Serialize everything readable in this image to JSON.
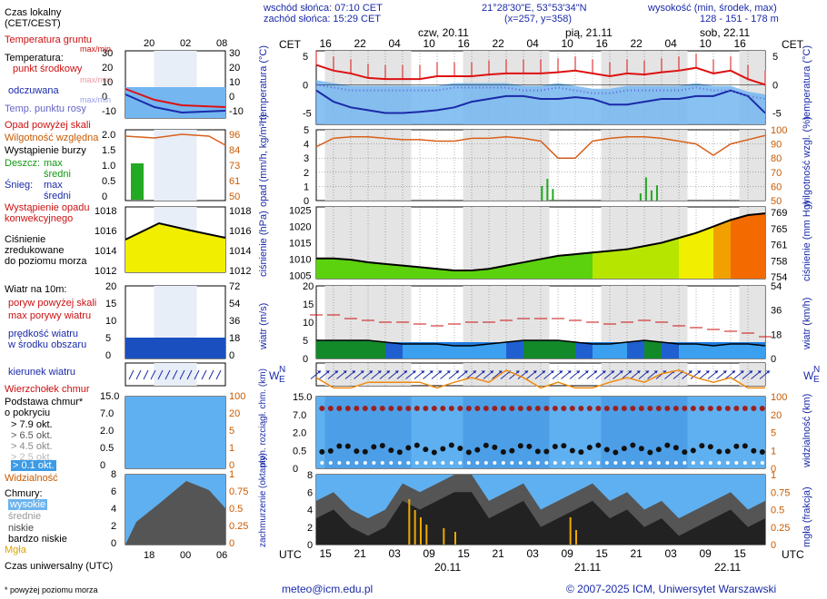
{
  "header": {
    "sunrise": "wschód słońca: 07:10 CET",
    "sunset": "zachód słońca: 15:29 CET",
    "coords": "21°28'30\"E, 53°53'34\"N",
    "grid": "(x=257,  y=358)",
    "altitude_label": "wysokość (min, środek, max)",
    "altitude_values": "128 - 151 - 178 m"
  },
  "time": {
    "cet_label": "CET",
    "utc_label": "UTC",
    "cet_hours": [
      "16",
      "22",
      "04",
      "10",
      "16",
      "22",
      "04",
      "10",
      "16",
      "22",
      "04",
      "10",
      "16"
    ],
    "utc_hours": [
      "15",
      "21",
      "03",
      "09",
      "15",
      "21",
      "03",
      "09",
      "15",
      "21",
      "03",
      "09",
      "15"
    ],
    "day_labels": [
      "czw, 20.11",
      "pią, 21.11",
      "sob, 22.11"
    ],
    "utc_dates": [
      "20.11",
      "21.11",
      "22.11"
    ]
  },
  "legend": {
    "local_time": "Czas lokalny",
    "local_time_sub": "(CET/CEST)",
    "legend_top_hours": [
      "20",
      "02",
      "08"
    ],
    "legend_bottom_hours": [
      "18",
      "00",
      "06"
    ],
    "utc_time": "Czas uniwersalny (UTC)",
    "footnote": "* powyżej poziomu morza",
    "temp": {
      "ground": "Temperatura gruntu",
      "ground_sub": "max/min",
      "title": "Temperatura:",
      "mid": "punkt środkowy",
      "maxmin": "max/min",
      "feels": "odczuwana",
      "feels_maxmin": "max/min",
      "dew": "Temp. punktu rosy",
      "ticks": [
        "30",
        "20",
        "10",
        "0",
        "-10"
      ],
      "ticks_right": [
        "30",
        "20",
        "10",
        "0",
        "-10"
      ]
    },
    "precip": {
      "above": "Opad powyżej skali",
      "rh": "Wilgotność względna",
      "storm": "Wystąpienie burzy",
      "rain": "Deszcz:",
      "rain_max": "max",
      "rain_mean": "średni",
      "snow": "Śnieg:",
      "snow_max": "max",
      "snow_mean": "średni",
      "convective": "Wystąpienie opadu",
      "convective2": "konwekcyjnego",
      "ticks": [
        "2.0",
        "1.5",
        "1.0",
        "0.5",
        "0"
      ],
      "ticks_right": [
        "96",
        "84",
        "73",
        "61",
        "50"
      ]
    },
    "pressure": {
      "title": "Ciśnienie",
      "sub1": "zredukowane",
      "sub2": "do poziomu morza",
      "ticks": [
        "1018",
        "1016",
        "1014",
        "1012"
      ],
      "ticks_right": [
        "1018",
        "1016",
        "1014",
        "1012"
      ]
    },
    "wind": {
      "title": "Wiatr na 10m:",
      "gust_above": "poryw powyżej skali",
      "gust_max": "max porywy wiatru",
      "speed": "prędkość wiatru",
      "speed2": "w środku obszaru",
      "ticks": [
        "20",
        "15",
        "10",
        "5",
        "0"
      ],
      "ticks_right": [
        "72",
        "54",
        "36",
        "18",
        "0"
      ]
    },
    "direction": "kierunek wiatru",
    "clouds_base": {
      "tops": "Wierzchołek chmur",
      "base": "Podstawa chmur*",
      "cover": "o pokryciu",
      "o79": "> 7.9 okt.",
      "o65": "> 6.5 okt.",
      "o45": "> 4.5 okt.",
      "o25": "> 2.5 okt.",
      "o01": "> 0.1 okt.",
      "visibility": "Widzialność",
      "ticks": [
        "15.0",
        "7.0",
        "2.0",
        "0.5",
        "0"
      ],
      "ticks_right": [
        "100",
        "20",
        "5",
        "1",
        "0"
      ]
    },
    "clouds": {
      "title": "Chmury:",
      "high": "wysokie",
      "mid": "średnie",
      "low": "niskie",
      "very_low": "bardzo niskie",
      "fog": "Mgła",
      "ticks": [
        "8",
        "6",
        "4",
        "2",
        "0"
      ],
      "ticks_right": [
        "1",
        "0.75",
        "0.5",
        "0.25",
        "0"
      ]
    }
  },
  "panels": {
    "temperature": {
      "ylabel": "temperatura (°C)",
      "ylabel_r": "temperatura (°C)",
      "ticks": [
        "5",
        "0",
        "-5"
      ]
    },
    "precip": {
      "ylabel": "opad (mm/h, kg/m²h)",
      "ylabel_r": "wilgotność wzgl. (%)",
      "ticks": [
        "5",
        "4",
        "3",
        "2",
        "1",
        "0"
      ],
      "ticks_right": [
        "100",
        "90",
        "80",
        "70",
        "60",
        "50"
      ]
    },
    "pressure": {
      "ylabel": "ciśnienie (hPa)",
      "ylabel_r": "ciśnienie (mm Hg)",
      "ticks": [
        "1025",
        "1020",
        "1015",
        "1010",
        "1005"
      ],
      "ticks_right": [
        "769",
        "765",
        "761",
        "758",
        "754"
      ]
    },
    "wind": {
      "ylabel": "wiatr (m/s)",
      "ylabel_r": "wiatr (km/h)",
      "ticks": [
        "20",
        "15",
        "10",
        "5",
        "0"
      ],
      "ticks_right": [
        "54",
        "36",
        "18",
        "0"
      ]
    },
    "clouds_base": {
      "ylabel": "pion. rozciągł. chm. (km)",
      "ylabel_r": "widzialność (km)",
      "ticks": [
        "15.0",
        "7.0",
        "2.0",
        "0.5",
        "0"
      ],
      "ticks_right": [
        "100",
        "20",
        "5",
        "1",
        "0"
      ]
    },
    "clouds": {
      "ylabel": "zachmurzenie (oktanty)",
      "ylabel_r": "mgła (frakcja)",
      "ticks": [
        "8",
        "6",
        "4",
        "2",
        "0"
      ],
      "ticks_right": [
        "1",
        "0.75",
        "0.5",
        "0.25",
        "0"
      ]
    },
    "compass": {
      "n": "N",
      "w": "W",
      "e": "E",
      "s": "S"
    }
  },
  "footer": {
    "email": "meteo@icm.edu.pl",
    "copyright": "© 2007-2025 ICM, Uniwersytet Warszawski"
  },
  "colors": {
    "red": "#dd1111",
    "blue": "#1a2aa8",
    "orange": "#d8601a",
    "sky": "#74b6f0",
    "rain": "#22aa22",
    "yellow": "#f2ee00"
  },
  "chart_data": [
    {
      "type": "line",
      "title": "temperatura",
      "ylabel": "temperatura (°C)",
      "ylim": [
        -7,
        6
      ],
      "x_hours_from_start": [
        0,
        3,
        6,
        9,
        12,
        15,
        18,
        21,
        24,
        27,
        30,
        33,
        36,
        39,
        42,
        45,
        48,
        51,
        54,
        57,
        60,
        63,
        66,
        69,
        72,
        75,
        78
      ],
      "series": [
        {
          "name": "punkt środkowy",
          "values": [
            3.5,
            2.5,
            2,
            1.2,
            1,
            1,
            1,
            1.5,
            1.5,
            1.5,
            1.8,
            2,
            2,
            2,
            2.2,
            2.5,
            2,
            1.5,
            2,
            1.8,
            2.2,
            2.5,
            3,
            2,
            2.5,
            1,
            0
          ]
        },
        {
          "name": "odczuwana",
          "values": [
            -1,
            -3,
            -4,
            -4.5,
            -5,
            -5,
            -4.8,
            -4.5,
            -4,
            -3,
            -2.5,
            -2,
            -2,
            -2.5,
            -2.5,
            -2.2,
            -2.5,
            -3.5,
            -3.5,
            -3,
            -2.5,
            -2.5,
            -2,
            -2,
            -1,
            -2,
            -5
          ]
        },
        {
          "name": "Temp. punktu rosy",
          "values": [
            0,
            -0.5,
            -1,
            -1,
            -1,
            -1,
            -1,
            -1,
            -0.5,
            -0.5,
            -0.5,
            -0.5,
            -1,
            -1,
            -0.5,
            -1,
            -1.5,
            -1.5,
            -1,
            -1,
            -1,
            -1,
            -0.5,
            -1,
            -1,
            -2,
            -2.5
          ]
        }
      ]
    },
    {
      "type": "line",
      "title": "wilgotność",
      "ylabel": "wilgotność wzgl. (%)",
      "ylim": [
        50,
        100
      ],
      "series": [
        {
          "name": "Wilgotność względna",
          "values": [
            88,
            94,
            95,
            95,
            94,
            93,
            93,
            92,
            92,
            94,
            94,
            95,
            94,
            92,
            80,
            80,
            92,
            94,
            95,
            95,
            94,
            92,
            90,
            82,
            90,
            93,
            96
          ]
        }
      ]
    },
    {
      "type": "line",
      "title": "ciśnienie",
      "ylabel": "ciśnienie (hPa)",
      "ylim": [
        1005,
        1025
      ],
      "series": [
        {
          "name": "Ciśnienie",
          "values": [
            1010.2,
            1010.2,
            1009.8,
            1009,
            1008.5,
            1008,
            1007.5,
            1007,
            1006.5,
            1006.5,
            1007,
            1008,
            1009,
            1010,
            1011,
            1011.5,
            1012,
            1012.5,
            1013,
            1014,
            1015,
            1016.5,
            1018,
            1020,
            1022,
            1023.5,
            1024
          ]
        }
      ]
    },
    {
      "type": "line",
      "title": "wiatr",
      "ylabel": "wiatr (m/s)",
      "ylim": [
        0,
        20
      ],
      "series": [
        {
          "name": "prędkość wiatru",
          "values": [
            5,
            5,
            5,
            5,
            4.5,
            4,
            4,
            4,
            3.5,
            3.5,
            4,
            4.5,
            5,
            5,
            5,
            4.5,
            4,
            4,
            4.5,
            5,
            4.5,
            4,
            4,
            3.5,
            4,
            4,
            3.5
          ]
        },
        {
          "name": "max porywy wiatru",
          "values": [
            12,
            12,
            11,
            10.5,
            10,
            10,
            9.5,
            9,
            9.5,
            10,
            10,
            10.5,
            11,
            11,
            11,
            10.5,
            10,
            9.5,
            10,
            10.5,
            10,
            9,
            8.5,
            8,
            7.5,
            7,
            6
          ]
        }
      ]
    }
  ]
}
